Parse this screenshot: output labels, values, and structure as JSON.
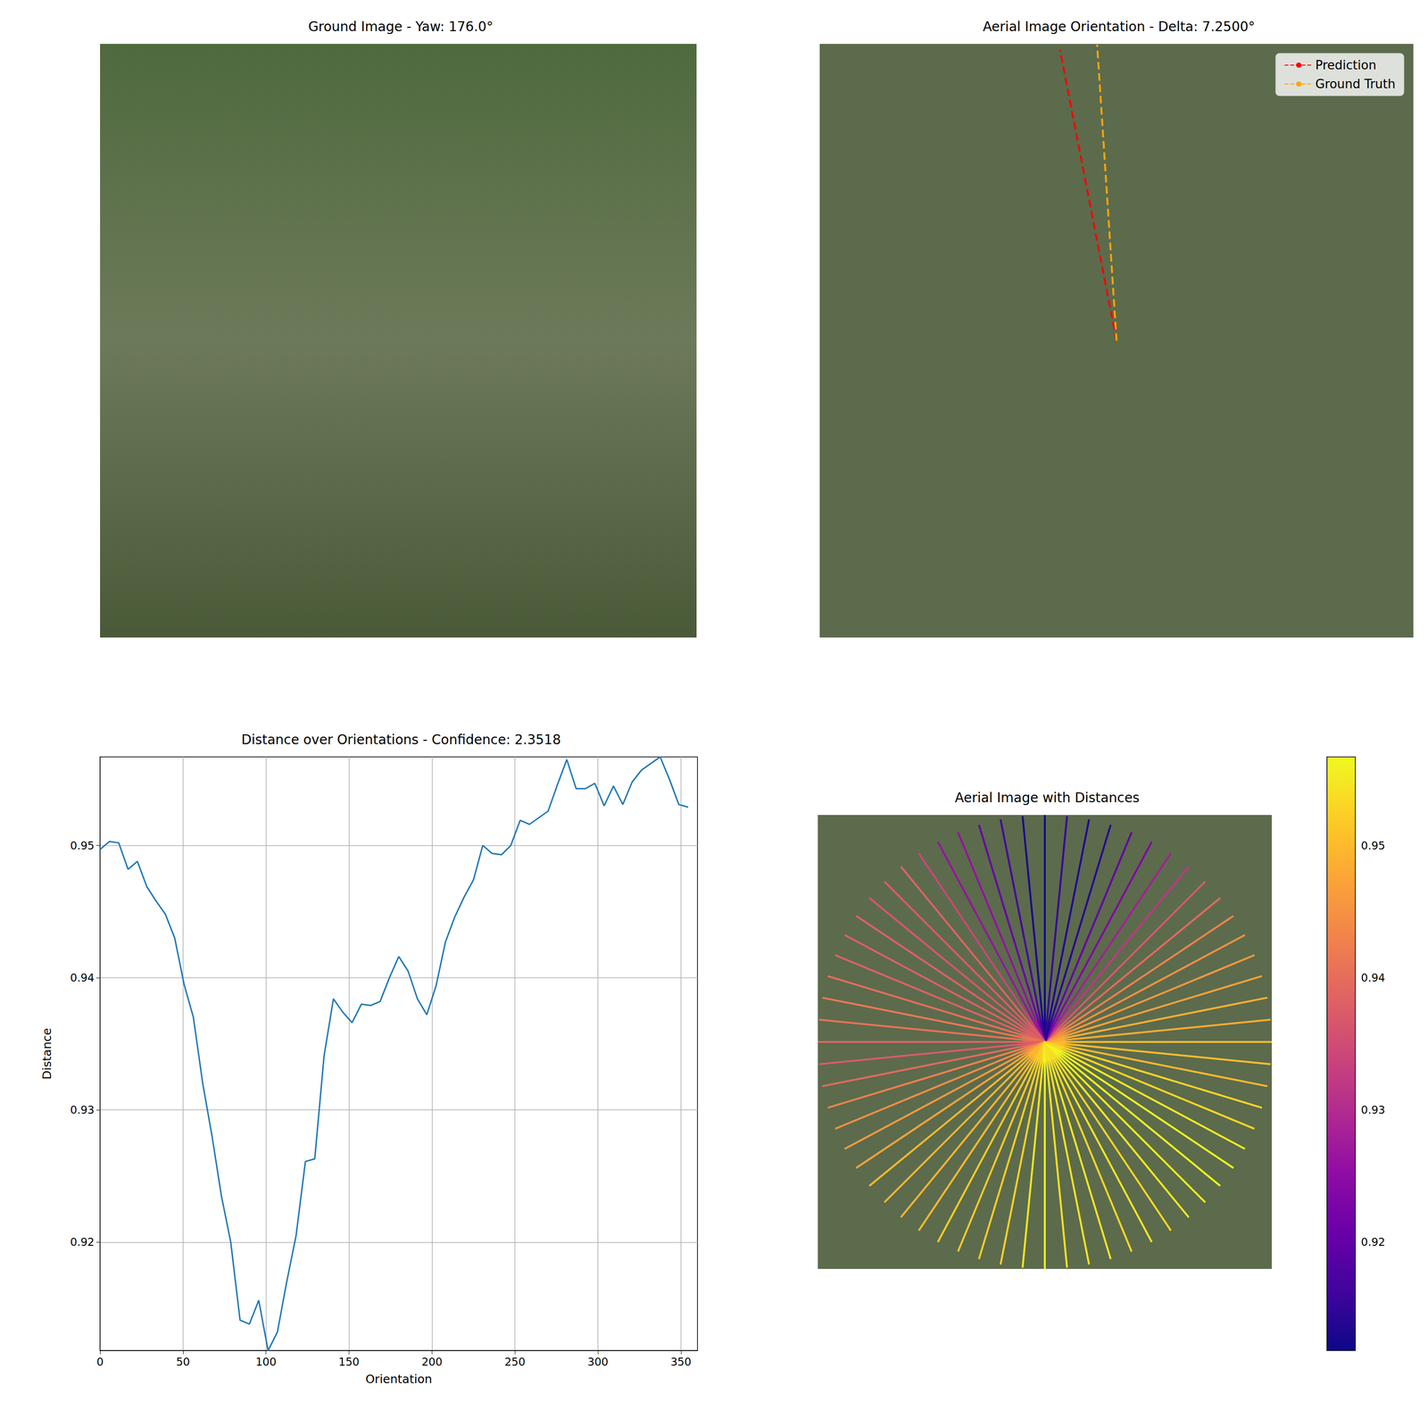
{
  "chart_data": [
    {
      "type": "image",
      "title": "Ground Image - Yaw: 176.0°"
    },
    {
      "type": "orientation",
      "title": "Aerial Image Orientation - Delta: 7.2500°",
      "legend": "upper right",
      "series": [
        {
          "name": "Prediction",
          "color": "red",
          "line_style": "dashed",
          "values": [
            349.0
          ]
        },
        {
          "name": "Ground Truth",
          "color": "orange",
          "line_style": "dashed",
          "values": [
            356.25
          ]
        }
      ]
    },
    {
      "type": "line",
      "title": "Distance over Orientations - Confidence: 2.3518",
      "x_label": "Orientation",
      "y_label": "Distance",
      "color": "#1f77b4",
      "x": [
        0,
        5.625,
        11.25,
        16.875,
        22.5,
        28.125,
        33.75,
        39.375,
        45,
        50.625,
        56.25,
        61.875,
        67.5,
        73.125,
        78.75,
        84.375,
        90,
        95.625,
        101.25,
        106.875,
        112.5,
        118.125,
        123.75,
        129.375,
        135,
        140.625,
        146.25,
        151.875,
        157.5,
        163.125,
        168.75,
        174.375,
        180,
        185.625,
        191.25,
        196.875,
        202.5,
        208.125,
        213.75,
        219.375,
        225,
        230.625,
        236.25,
        241.875,
        247.5,
        253.125,
        258.75,
        264.375,
        270,
        275.625,
        281.25,
        286.875,
        292.5,
        298.125,
        303.75,
        309.375,
        315,
        320.625,
        326.25,
        331.875,
        337.5,
        343.125,
        348.75,
        354.375
      ],
      "values": [
        0.9497,
        0.9503,
        0.9502,
        0.9482,
        0.9488,
        0.9469,
        0.9458,
        0.9448,
        0.943,
        0.9395,
        0.937,
        0.932,
        0.928,
        0.9235,
        0.92,
        0.9141,
        0.9138,
        0.9156,
        0.9118,
        0.9132,
        0.917,
        0.9205,
        0.9261,
        0.9263,
        0.9341,
        0.9384,
        0.9374,
        0.9366,
        0.938,
        0.9379,
        0.9382,
        0.94,
        0.9416,
        0.9405,
        0.9384,
        0.9372,
        0.9394,
        0.9427,
        0.9446,
        0.9461,
        0.9474,
        0.95,
        0.9494,
        0.9493,
        0.95,
        0.9519,
        0.9516,
        0.9521,
        0.9526,
        0.9546,
        0.9565,
        0.9543,
        0.9543,
        0.9547,
        0.953,
        0.9545,
        0.9531,
        0.9548,
        0.9557,
        0.9562,
        0.9567,
        0.955,
        0.9531,
        0.9529
      ],
      "xlim": [
        0,
        360
      ],
      "xticks": [
        0,
        50,
        100,
        150,
        200,
        250,
        300,
        350
      ],
      "ylim": [
        0.9118,
        0.9567
      ],
      "yticks": [
        0.92,
        0.93,
        0.94,
        0.95
      ],
      "grid": true
    },
    {
      "type": "radial",
      "title": "Aerial Image with Distances",
      "color": "plasma",
      "colorbar_range": [
        0.9118,
        0.9567
      ],
      "colorbar_ticks": [
        0.92,
        0.93,
        0.94,
        0.95
      ]
    }
  ]
}
